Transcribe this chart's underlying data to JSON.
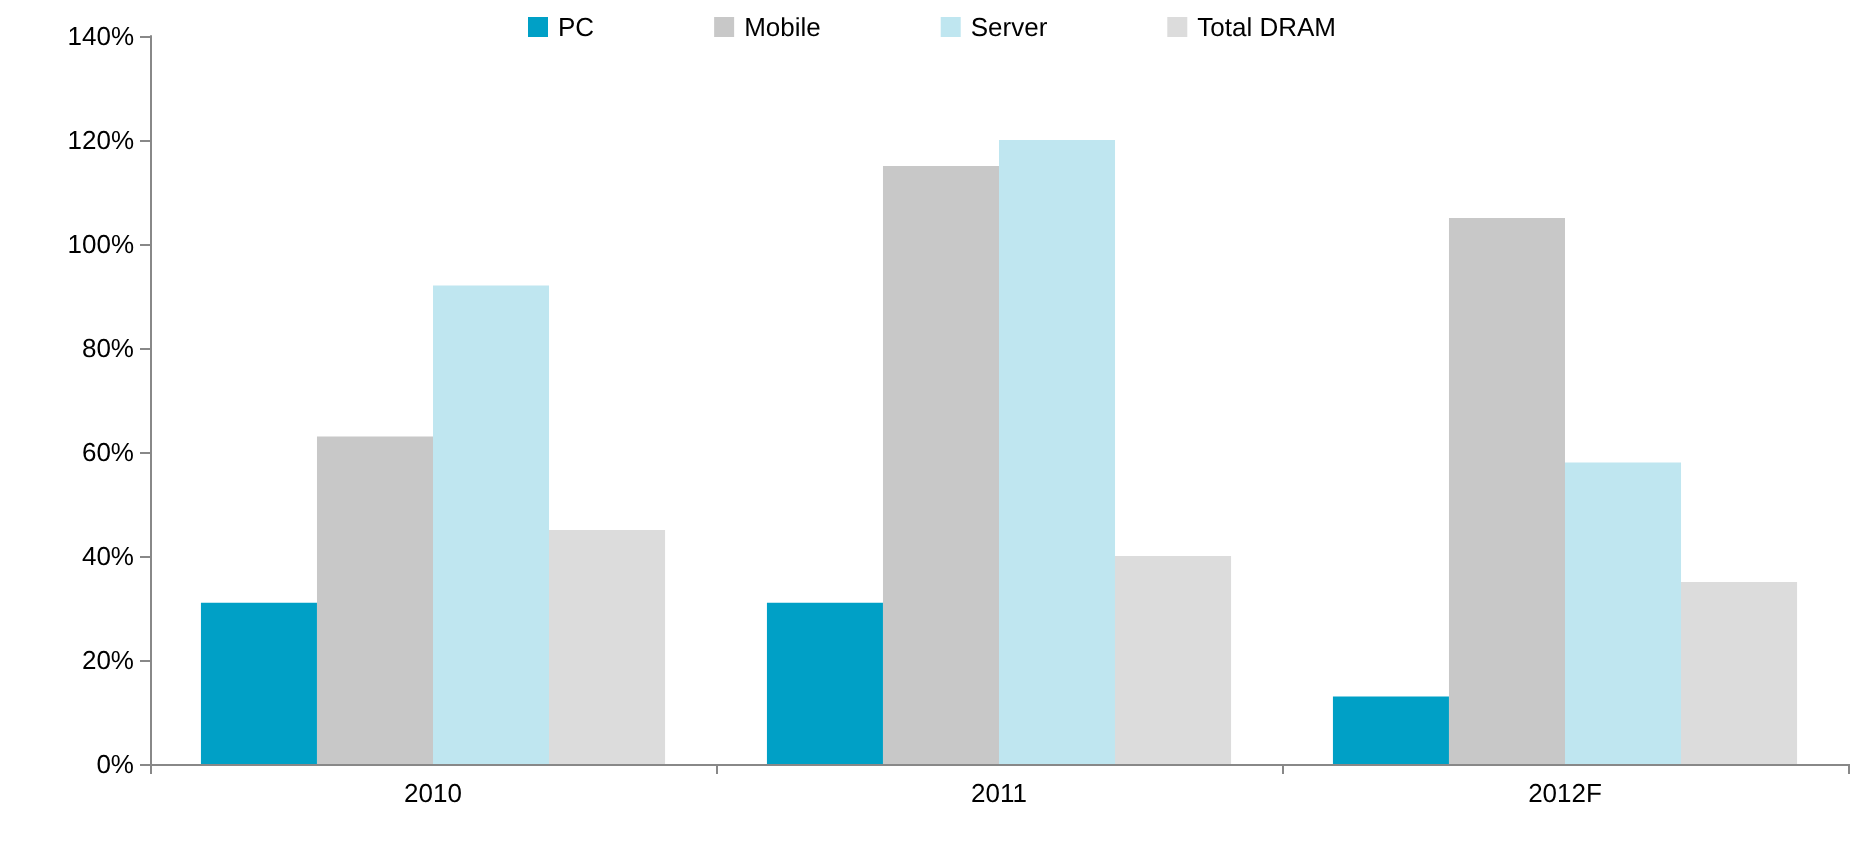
{
  "chart_data": {
    "type": "bar",
    "categories": [
      "2010",
      "2011",
      "2012F"
    ],
    "series": [
      {
        "name": "PC",
        "color": "#00a0c6",
        "values": [
          31,
          31,
          13
        ]
      },
      {
        "name": "Mobile",
        "color": "#c8c8c8",
        "values": [
          63,
          115,
          105
        ]
      },
      {
        "name": "Server",
        "color": "#bfe6f0",
        "values": [
          92,
          120,
          58
        ]
      },
      {
        "name": "Total DRAM",
        "color": "#dcdcdc",
        "values": [
          45,
          40,
          35
        ]
      }
    ],
    "ylim": [
      0,
      140
    ],
    "yticks": [
      {
        "value": 0,
        "label": "0%"
      },
      {
        "value": 20,
        "label": "20%"
      },
      {
        "value": 40,
        "label": "40%"
      },
      {
        "value": 60,
        "label": "60%"
      },
      {
        "value": 80,
        "label": "80%"
      },
      {
        "value": 100,
        "label": "100%"
      },
      {
        "value": 120,
        "label": "120%"
      },
      {
        "value": 140,
        "label": "140%"
      }
    ],
    "grid": false,
    "legend": "top"
  }
}
